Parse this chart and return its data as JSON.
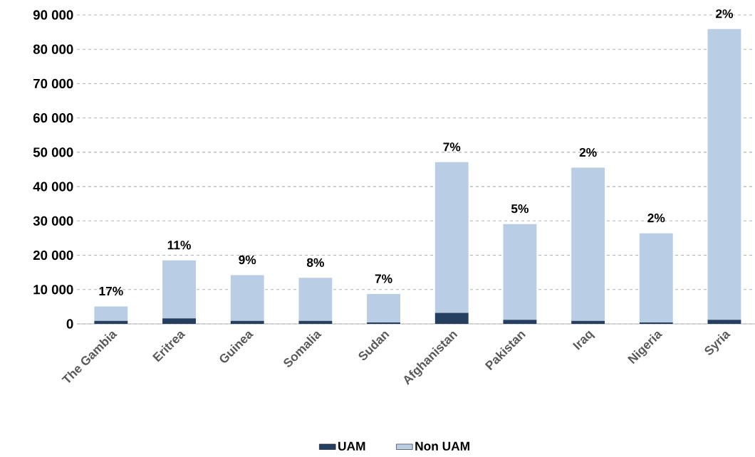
{
  "chart_data": {
    "type": "bar",
    "stacked": true,
    "categories": [
      "The Gambia",
      "Eritrea",
      "Guinea",
      "Somalia",
      "Sudan",
      "Afghanistan",
      "Pakistan",
      "Iraq",
      "Nigeria",
      "Syria"
    ],
    "series": [
      {
        "name": "UAM",
        "color": "#243f60",
        "values": [
          900,
          1600,
          900,
          900,
          400,
          3200,
          1200,
          900,
          400,
          1200
        ]
      },
      {
        "name": "Non UAM",
        "color": "#b9cde4",
        "values": [
          4200,
          16900,
          13300,
          12500,
          8300,
          43900,
          27900,
          44600,
          26000,
          84700
        ]
      }
    ],
    "ylim": [
      0,
      90000
    ],
    "yticks": [
      0,
      {
        "value": 10000,
        "label": "10 000"
      },
      {
        "value": 20000,
        "label": "20 000"
      },
      {
        "value": 30000,
        "label": "30 000"
      },
      {
        "value": 40000,
        "label": "40 000"
      },
      {
        "value": 50000,
        "label": "50 000"
      },
      {
        "value": 60000,
        "label": "60 000"
      },
      {
        "value": 70000,
        "label": "70 000"
      },
      {
        "value": 80000,
        "label": "80 000"
      },
      {
        "value": 90000,
        "label": "90 000"
      }
    ],
    "grid": "y",
    "legend": "bottom",
    "annotations": [
      {
        "text": "17%",
        "x": "The Gambia",
        "y": 5100
      },
      {
        "text": "11%",
        "x": "Eritrea",
        "y": 18500
      },
      {
        "text": "9%",
        "x": "Guinea",
        "y": 14200
      },
      {
        "text": "8%",
        "x": "Somalia",
        "y": 13400
      },
      {
        "text": "7%",
        "x": "Sudan",
        "y": 8700
      },
      {
        "text": "7%",
        "x": "Afghanistan",
        "y": 47100
      },
      {
        "text": "5%",
        "x": "Pakistan",
        "y": 29100
      },
      {
        "text": "2%",
        "x": "Iraq",
        "y": 45500
      },
      {
        "text": "2%",
        "x": "Nigeria",
        "y": 26400
      },
      {
        "text": "2%",
        "x": "Syria",
        "y": 85900
      }
    ]
  }
}
